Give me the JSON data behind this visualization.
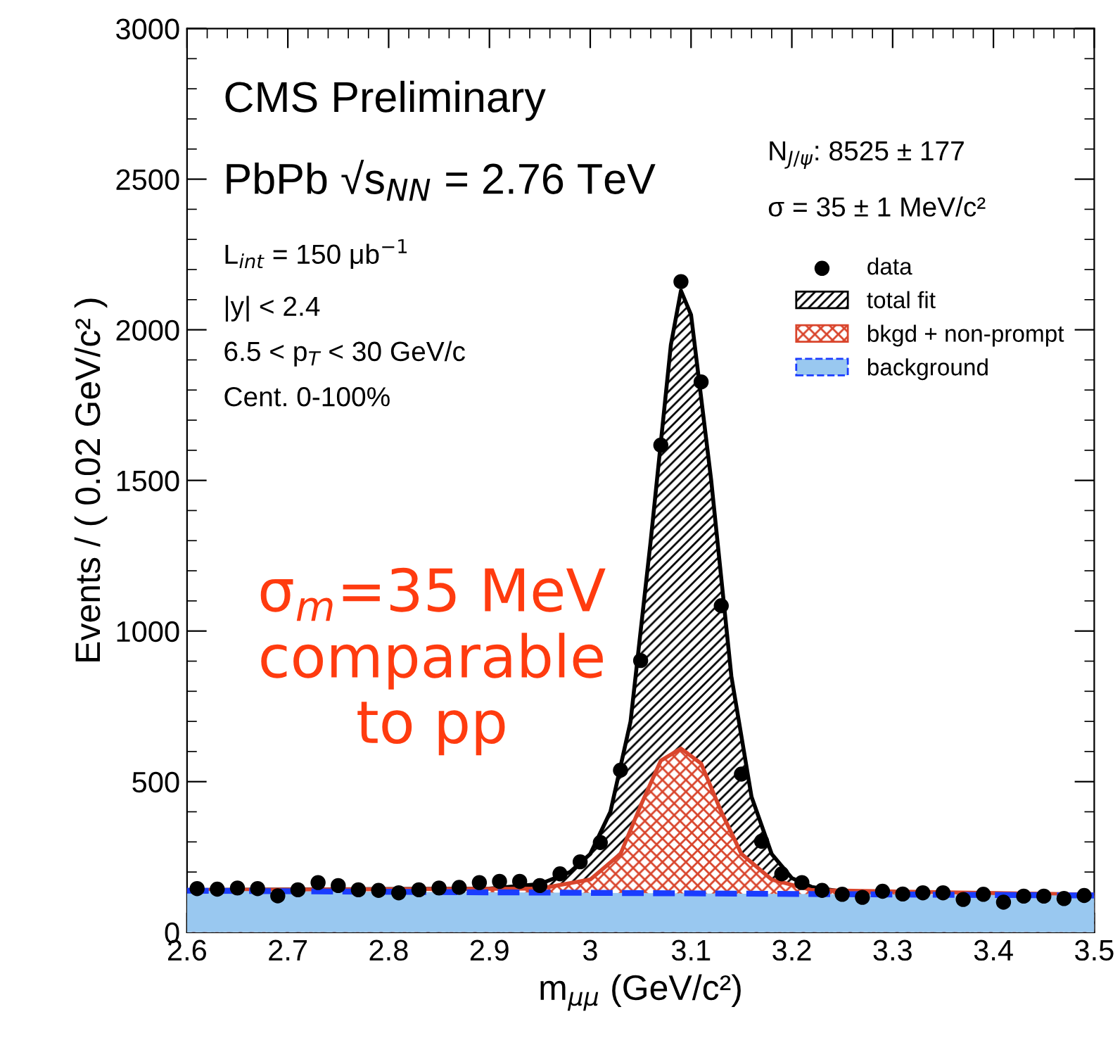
{
  "chart_data": {
    "type": "scatter",
    "xlabel": "m$_{μμ}$ (GeV/c²)",
    "ylabel": "Events / ( 0.02 GeV/c² )",
    "xlim": [
      2.6,
      3.5
    ],
    "xticks": [
      2.6,
      2.7,
      2.8,
      2.9,
      3,
      3.1,
      3.2,
      3.3,
      3.4,
      3.5
    ],
    "ylim": [
      0,
      3000
    ],
    "yticks": [
      0,
      500,
      1000,
      1500,
      2000,
      2500,
      3000
    ],
    "grid": false,
    "legend": "top right",
    "series": [
      {
        "name": "data",
        "color": "#000000",
        "marker": "circle",
        "x": [
          2.61,
          2.63,
          2.65,
          2.67,
          2.69,
          2.71,
          2.73,
          2.75,
          2.77,
          2.79,
          2.81,
          2.83,
          2.85,
          2.87,
          2.89,
          2.91,
          2.93,
          2.95,
          2.97,
          2.99,
          3.01,
          3.03,
          3.05,
          3.07,
          3.09,
          3.11,
          3.13,
          3.15,
          3.17,
          3.19,
          3.21,
          3.23,
          3.25,
          3.27,
          3.29,
          3.31,
          3.33,
          3.35,
          3.37,
          3.39,
          3.41,
          3.43,
          3.45,
          3.47,
          3.49
        ],
        "values": [
          145,
          143,
          147,
          145,
          121,
          141,
          165,
          155,
          141,
          139,
          131,
          141,
          147,
          149,
          165,
          169,
          169,
          155,
          194,
          234,
          298,
          538,
          902,
          1617,
          2160,
          1827,
          1084,
          525,
          302,
          194,
          165,
          139,
          126,
          116,
          136,
          127,
          131,
          131,
          109,
          126,
          100,
          120,
          120,
          112,
          122
        ]
      },
      {
        "name": "total fit",
        "type": "area",
        "color": "#000000",
        "x": [
          2.6,
          2.9,
          2.95,
          2.98,
          3.0,
          3.02,
          3.04,
          3.06,
          3.08,
          3.09,
          3.1,
          3.12,
          3.14,
          3.16,
          3.18,
          3.2,
          3.22,
          3.25,
          3.5
        ],
        "values": [
          140,
          145,
          160,
          200,
          260,
          400,
          700,
          1300,
          1950,
          2130,
          2050,
          1500,
          850,
          450,
          260,
          180,
          150,
          135,
          125
        ]
      },
      {
        "name": "bkgd + non-prompt",
        "type": "area",
        "color": "#d9452c",
        "x": [
          2.6,
          2.95,
          3.0,
          3.03,
          3.05,
          3.07,
          3.09,
          3.11,
          3.13,
          3.15,
          3.18,
          3.22,
          3.5
        ],
        "values": [
          140,
          145,
          175,
          260,
          420,
          570,
          610,
          560,
          400,
          260,
          175,
          140,
          125
        ]
      },
      {
        "name": "background",
        "type": "area",
        "color": "#99c8f0",
        "line_style": "dashed",
        "x": [
          2.6,
          3.5
        ],
        "values": [
          138,
          122
        ]
      }
    ],
    "annotations": [
      "CMS Preliminary",
      "PbPb √s$_{NN}$ = 2.76 TeV",
      "L$_{int}$ = 150 μb$^{−1}$",
      "|y| < 2.4",
      "6.5 < p$_{T}$ < 30 GeV/c",
      "Cent. 0-100%",
      "N$_{J/ψ}$: 8525 ± 177",
      "σ = 35 ± 1 MeV/c²",
      "σ$_{m}$=35 MeV\ncomparable\nto pp"
    ]
  }
}
